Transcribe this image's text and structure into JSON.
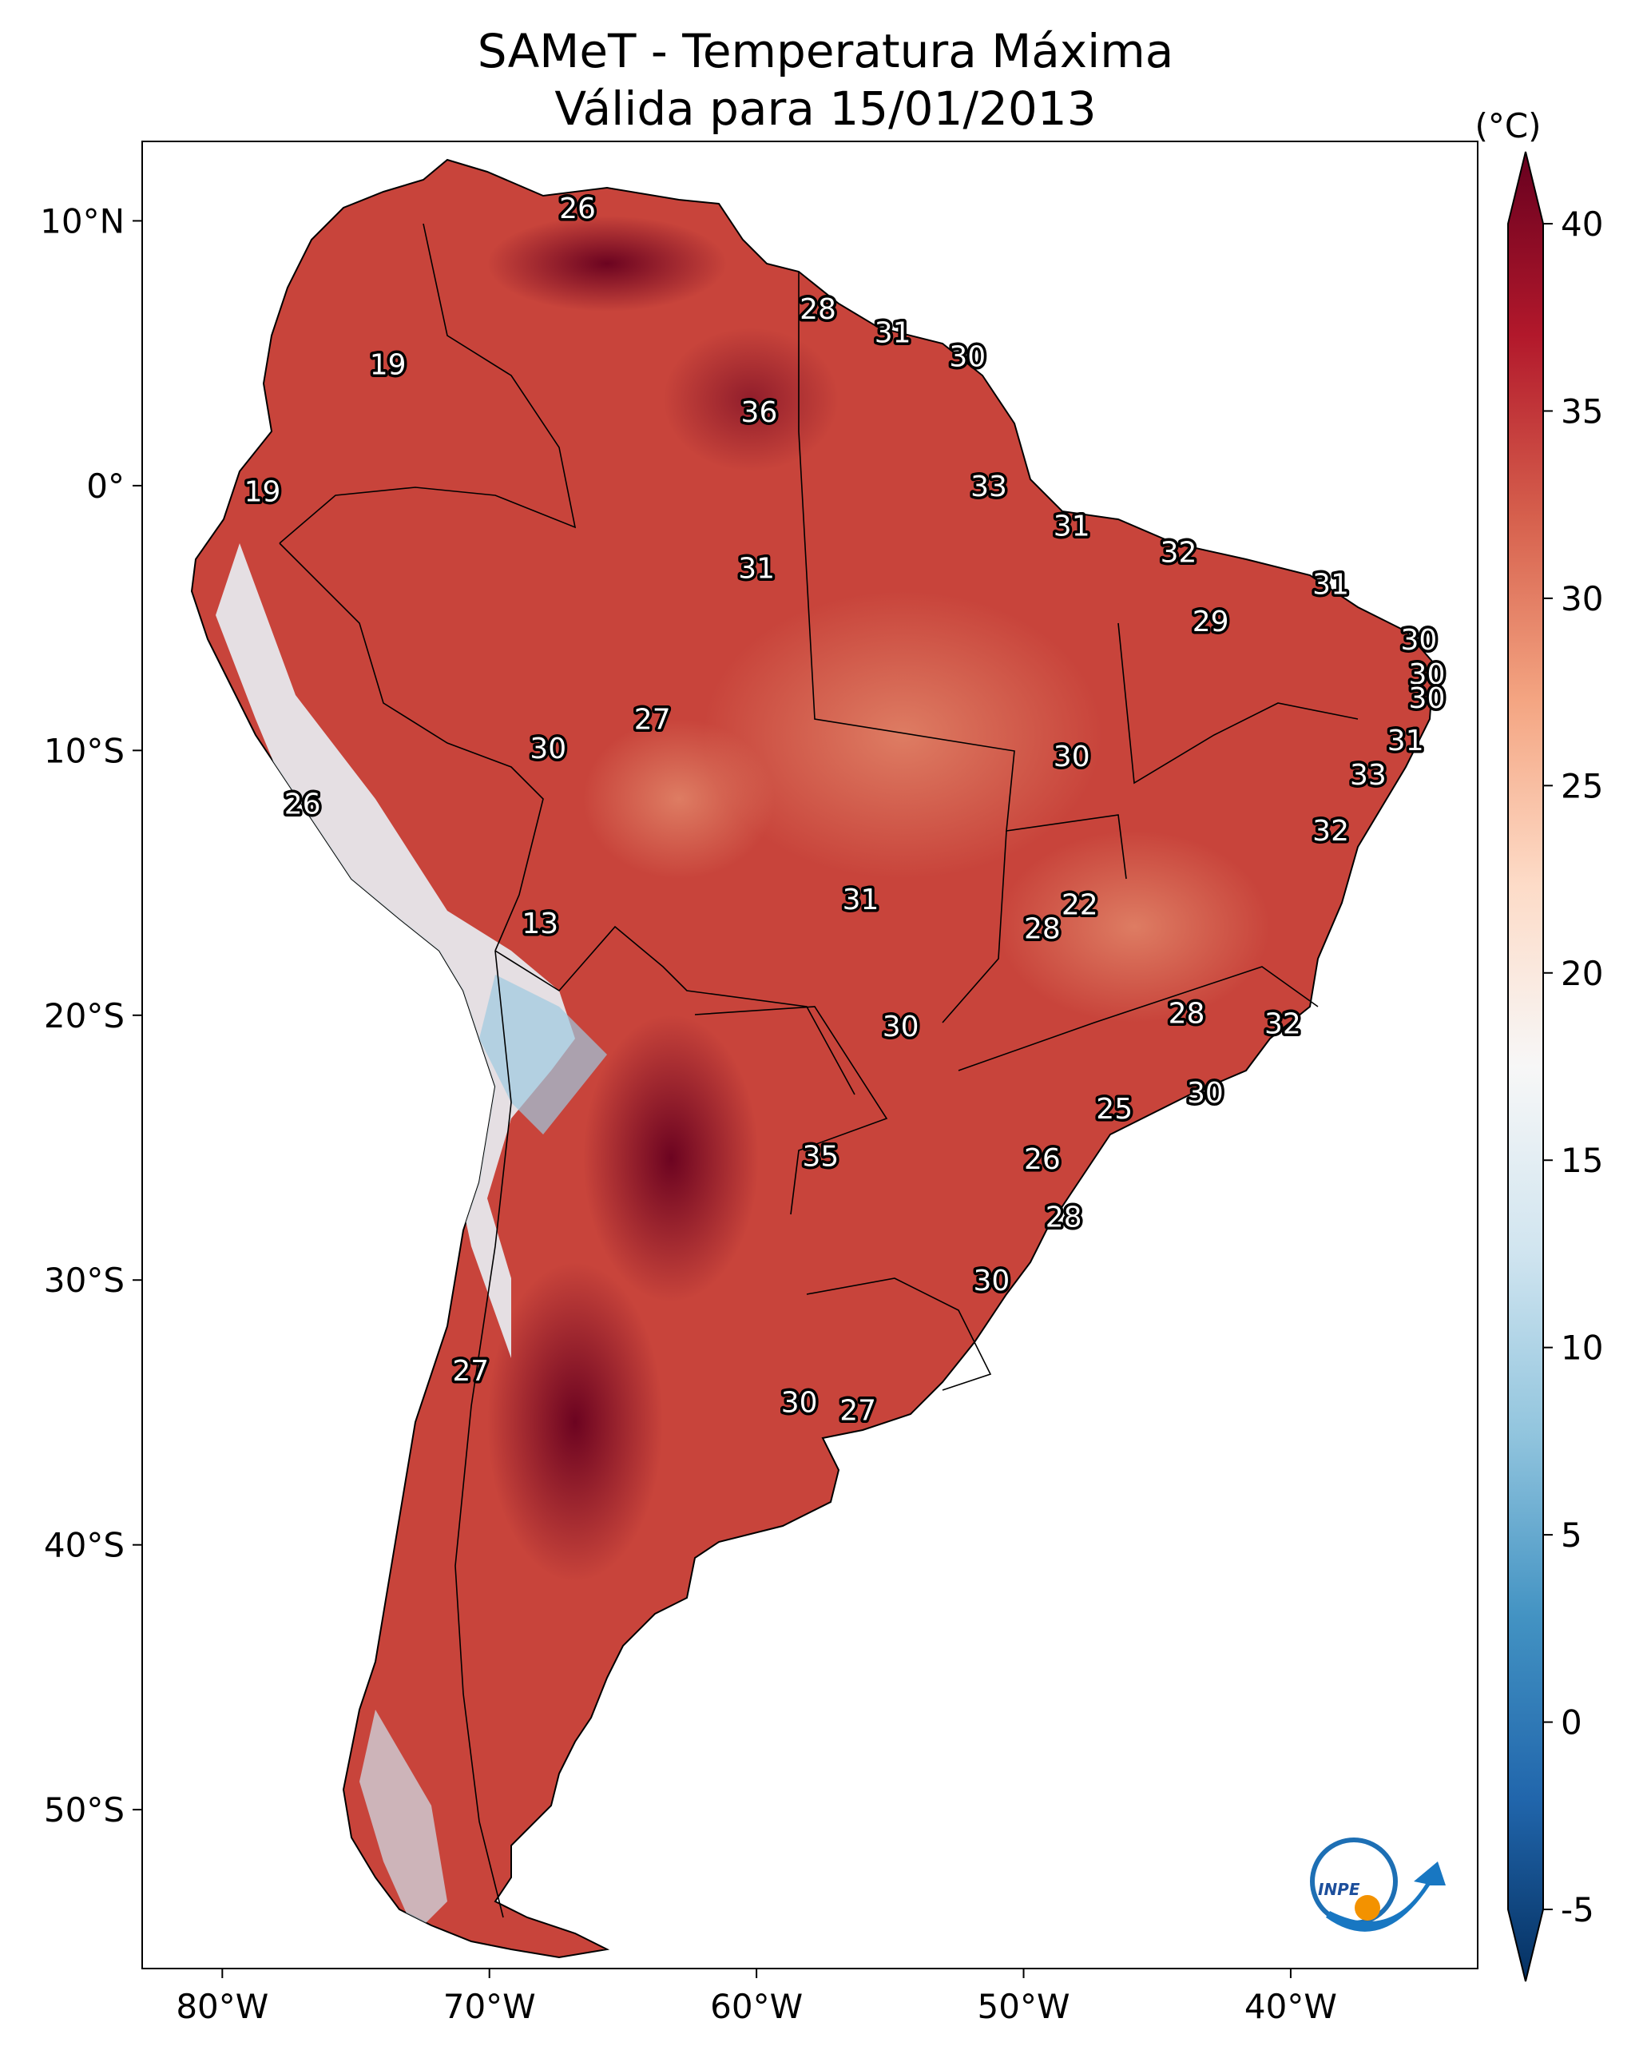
{
  "title": {
    "line1": "SAMeT - Temperatura Máxima",
    "line2": "Válida para 15/01/2013"
  },
  "map": {
    "lon_range": [
      -83,
      -33
    ],
    "lat_range": [
      -56,
      13
    ],
    "lat_ticks": [
      {
        "value": 10,
        "label": "10°N"
      },
      {
        "value": 0,
        "label": "0°"
      },
      {
        "value": -10,
        "label": "10°S"
      },
      {
        "value": -20,
        "label": "20°S"
      },
      {
        "value": -30,
        "label": "30°S"
      },
      {
        "value": -40,
        "label": "40°S"
      },
      {
        "value": -50,
        "label": "50°S"
      }
    ],
    "lon_ticks": [
      {
        "value": -80,
        "label": "80°W"
      },
      {
        "value": -70,
        "label": "70°W"
      },
      {
        "value": -60,
        "label": "60°W"
      },
      {
        "value": -50,
        "label": "50°W"
      },
      {
        "value": -40,
        "label": "40°W"
      }
    ],
    "stations": [
      {
        "lon": -66.7,
        "lat": 10.5,
        "value": "26"
      },
      {
        "lon": -57.7,
        "lat": 6.7,
        "value": "28"
      },
      {
        "lon": -54.9,
        "lat": 5.8,
        "value": "31"
      },
      {
        "lon": -52.1,
        "lat": 4.9,
        "value": "30"
      },
      {
        "lon": -73.8,
        "lat": 4.6,
        "value": "19"
      },
      {
        "lon": -59.9,
        "lat": 2.8,
        "value": "36"
      },
      {
        "lon": -51.3,
        "lat": 0.0,
        "value": "33"
      },
      {
        "lon": -78.5,
        "lat": -0.2,
        "value": "19"
      },
      {
        "lon": -48.2,
        "lat": -1.5,
        "value": "31"
      },
      {
        "lon": -44.2,
        "lat": -2.5,
        "value": "32"
      },
      {
        "lon": -60.0,
        "lat": -3.1,
        "value": "31"
      },
      {
        "lon": -38.5,
        "lat": -3.7,
        "value": "31"
      },
      {
        "lon": -43.0,
        "lat": -5.1,
        "value": "29"
      },
      {
        "lon": -35.2,
        "lat": -5.8,
        "value": "30"
      },
      {
        "lon": -34.9,
        "lat": -7.1,
        "value": "30"
      },
      {
        "lon": -34.9,
        "lat": -8.0,
        "value": "30"
      },
      {
        "lon": -63.9,
        "lat": -8.8,
        "value": "27"
      },
      {
        "lon": -67.8,
        "lat": -9.9,
        "value": "30"
      },
      {
        "lon": -35.7,
        "lat": -9.6,
        "value": "31"
      },
      {
        "lon": -48.2,
        "lat": -10.2,
        "value": "30"
      },
      {
        "lon": -37.1,
        "lat": -10.9,
        "value": "33"
      },
      {
        "lon": -77.0,
        "lat": -12.0,
        "value": "26"
      },
      {
        "lon": -38.5,
        "lat": -13.0,
        "value": "32"
      },
      {
        "lon": -56.1,
        "lat": -15.6,
        "value": "31"
      },
      {
        "lon": -47.9,
        "lat": -15.8,
        "value": "22"
      },
      {
        "lon": -49.3,
        "lat": -16.7,
        "value": "28"
      },
      {
        "lon": -68.1,
        "lat": -16.5,
        "value": "13"
      },
      {
        "lon": -43.9,
        "lat": -19.9,
        "value": "28"
      },
      {
        "lon": -40.3,
        "lat": -20.3,
        "value": "32"
      },
      {
        "lon": -54.6,
        "lat": -20.4,
        "value": "30"
      },
      {
        "lon": -43.2,
        "lat": -22.9,
        "value": "30"
      },
      {
        "lon": -46.6,
        "lat": -23.5,
        "value": "25"
      },
      {
        "lon": -57.6,
        "lat": -25.3,
        "value": "35"
      },
      {
        "lon": -49.3,
        "lat": -25.4,
        "value": "26"
      },
      {
        "lon": -48.5,
        "lat": -27.6,
        "value": "28"
      },
      {
        "lon": -51.2,
        "lat": -30.0,
        "value": "30"
      },
      {
        "lon": -70.7,
        "lat": -33.4,
        "value": "27"
      },
      {
        "lon": -58.4,
        "lat": -34.6,
        "value": "30"
      },
      {
        "lon": -56.2,
        "lat": -34.9,
        "value": "27"
      }
    ]
  },
  "colorbar": {
    "unit": "(°C)",
    "range": [
      -5,
      40
    ],
    "ticks": [
      {
        "value": 40,
        "label": "40"
      },
      {
        "value": 35,
        "label": "35"
      },
      {
        "value": 30,
        "label": "30"
      },
      {
        "value": 25,
        "label": "25"
      },
      {
        "value": 20,
        "label": "20"
      },
      {
        "value": 15,
        "label": "15"
      },
      {
        "value": 10,
        "label": "10"
      },
      {
        "value": 5,
        "label": "5"
      },
      {
        "value": 0,
        "label": "0"
      },
      {
        "value": -5,
        "label": "-5"
      }
    ],
    "colors": [
      "#67001f",
      "#b2182b",
      "#d6604d",
      "#f4a582",
      "#fddbc7",
      "#f7f7f7",
      "#d1e5f0",
      "#92c5de",
      "#4393c3",
      "#2166ac",
      "#053061"
    ]
  },
  "logo": {
    "text": "INPE"
  }
}
